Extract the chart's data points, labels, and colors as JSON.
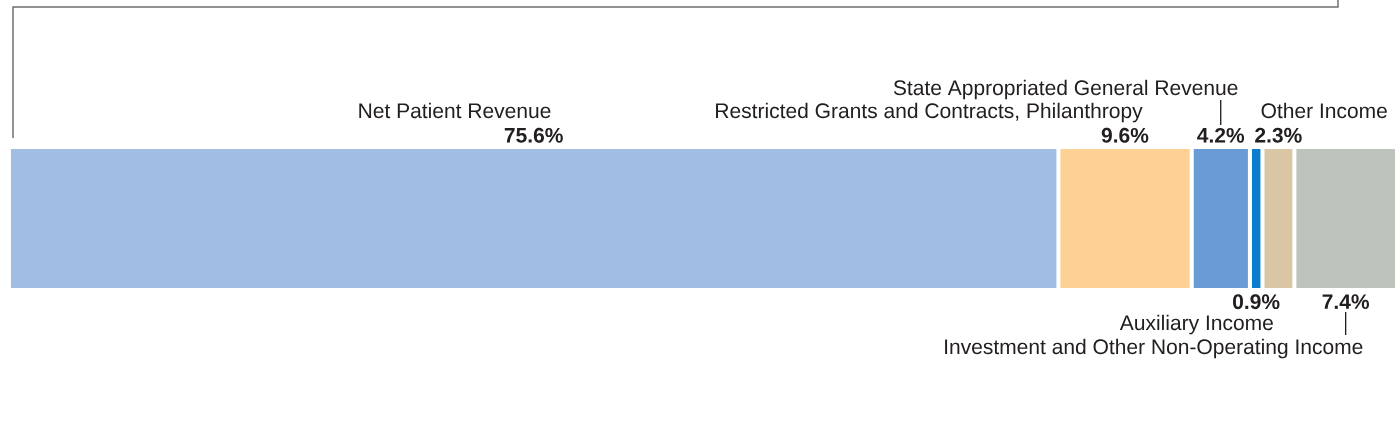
{
  "chart_data": {
    "type": "bar",
    "orientation": "horizontal",
    "stacked": true,
    "categories": [
      null
    ],
    "series": [
      {
        "name": "Net Patient Revenue",
        "color": "#a2bde4",
        "values": [
          75.6
        ],
        "value_labels": [
          "75.6%"
        ]
      },
      {
        "name": "Restricted Grants and Contracts, Philanthropy",
        "color": "#fdd193",
        "values": [
          9.6
        ],
        "value_labels": [
          "9.6%"
        ]
      },
      {
        "name": "State Appropriated General Revenue",
        "color": "#6b9bd6",
        "values": [
          4.2
        ],
        "value_labels": [
          "4.2%"
        ]
      },
      {
        "name": "Auxiliary Income",
        "color": "#0b7dcc",
        "values": [
          0.9
        ],
        "value_labels": [
          "0.9%"
        ]
      },
      {
        "name": "Other Income",
        "color": "#d9c6a4",
        "values": [
          2.3
        ],
        "value_labels": [
          "2.3%"
        ]
      },
      {
        "name": "Investment and Other Non-Operating Income",
        "color": "#bec4bb",
        "values": [
          7.4
        ],
        "value_labels": [
          "7.4%"
        ]
      }
    ]
  }
}
